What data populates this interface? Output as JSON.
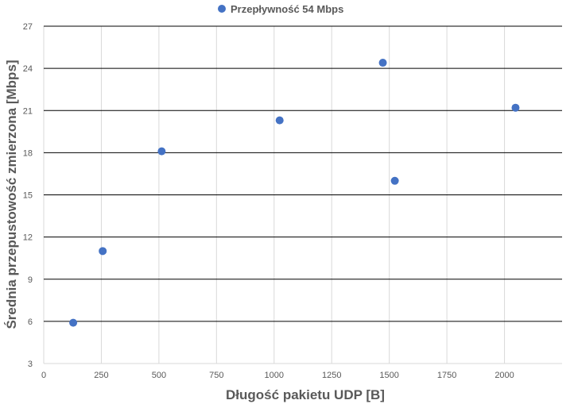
{
  "chart_data": {
    "type": "scatter",
    "xlabel": "Długość pakietu UDP [B]",
    "ylabel": "Średnia przepustowość zmierzona [Mbps]",
    "xlim": [
      0,
      2250
    ],
    "ylim": [
      3,
      27
    ],
    "xticks": [
      0,
      250,
      500,
      750,
      1000,
      1250,
      1500,
      1750,
      2000
    ],
    "yticks": [
      3,
      6,
      9,
      12,
      15,
      18,
      21,
      24,
      27
    ],
    "grid": true,
    "legend_position": "top",
    "series": [
      {
        "name": "Przepływność 54 Mbps",
        "color": "#4472C4",
        "points": [
          {
            "x": 128,
            "y": 5.9
          },
          {
            "x": 256,
            "y": 11.0
          },
          {
            "x": 512,
            "y": 18.1
          },
          {
            "x": 1024,
            "y": 20.3
          },
          {
            "x": 1472,
            "y": 24.4
          },
          {
            "x": 1524,
            "y": 16.0
          },
          {
            "x": 2048,
            "y": 21.2
          }
        ]
      }
    ]
  }
}
